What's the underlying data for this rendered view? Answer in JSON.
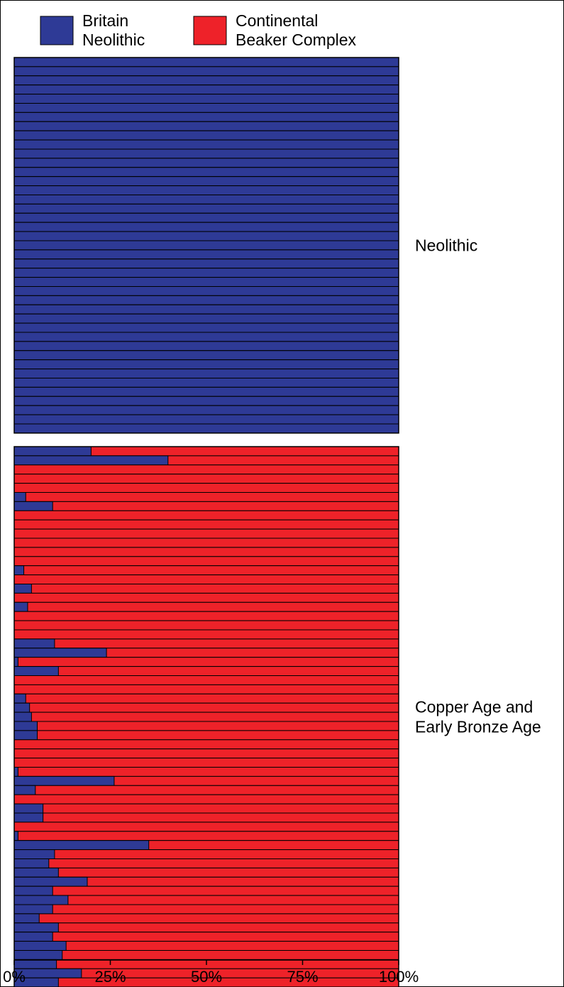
{
  "chart_data": {
    "type": "bar",
    "orientation": "horizontal",
    "stacked": true,
    "normalized": true,
    "legend": {
      "placement": "top",
      "entries": [
        {
          "name": "Britain Neolithic",
          "lines": [
            "Britain",
            "Neolithic"
          ],
          "color": "#2e3a96"
        },
        {
          "name": "Continental Beaker Complex",
          "lines": [
            "Continental",
            "Beaker Complex"
          ],
          "color": "#ee2229"
        }
      ]
    },
    "x_axis": {
      "range": [
        0,
        100
      ],
      "ticks": [
        0,
        25,
        50,
        75,
        100
      ],
      "tick_labels": [
        "0%",
        "25%",
        "50%",
        "75%",
        "100%"
      ]
    },
    "grid": false,
    "groups": [
      {
        "label_lines": [
          "Neolithic"
        ],
        "britain_neolithic_pct": [
          100,
          100,
          100,
          100,
          100,
          100,
          100,
          100,
          100,
          100,
          100,
          100,
          100,
          100,
          100,
          100,
          100,
          100,
          100,
          100,
          100,
          100,
          100,
          100,
          100,
          100,
          100,
          100,
          100,
          100,
          100,
          100,
          100,
          100,
          100,
          100,
          100,
          100,
          100,
          100,
          100
        ]
      },
      {
        "label_lines": [
          "Copper Age and",
          "Early Bronze Age"
        ],
        "britain_neolithic_pct": [
          20,
          40,
          0,
          0,
          0,
          3,
          10,
          0,
          0,
          0,
          0,
          0,
          0,
          2.5,
          0,
          4.5,
          0,
          3.5,
          0,
          0,
          0,
          10.5,
          24,
          1,
          11.5,
          0,
          0,
          3,
          4,
          4.5,
          6,
          6,
          0,
          0,
          0,
          1,
          26,
          5.5,
          0,
          7.5,
          7.5,
          0,
          1,
          35,
          10.5,
          9,
          11.5,
          19,
          10,
          14,
          10,
          6.5,
          11.5,
          10,
          13.5,
          12.5,
          11,
          17.5,
          11.5
        ]
      }
    ]
  }
}
